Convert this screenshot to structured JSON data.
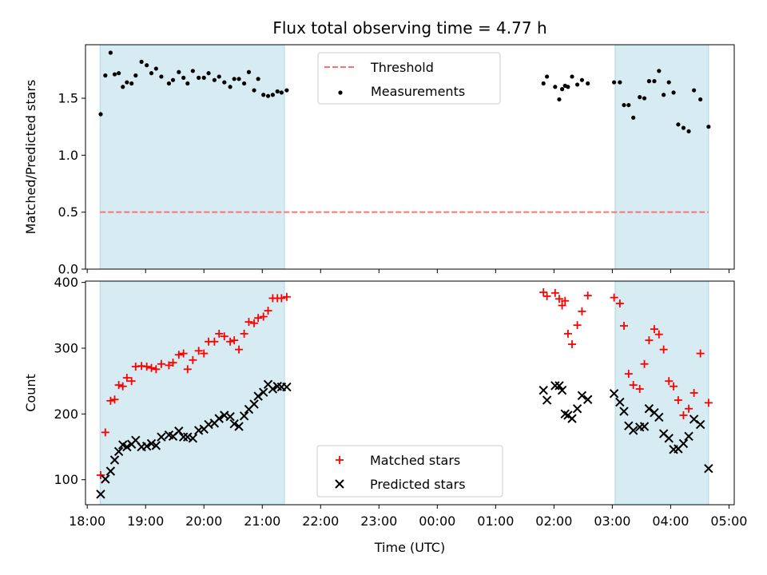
{
  "chart_data": {
    "title": "Flux total observing time = 4.77 h",
    "xlabel": "Time (UTC)",
    "x_unit": "hours since 18:00 UTC",
    "xlim": [
      17.97,
      29.09
    ],
    "xticks": [
      {
        "v": 18,
        "label": "18:00"
      },
      {
        "v": 19,
        "label": "19:00"
      },
      {
        "v": 20,
        "label": "20:00"
      },
      {
        "v": 21,
        "label": "21:00"
      },
      {
        "v": 22,
        "label": "22:00"
      },
      {
        "v": 23,
        "label": "23:00"
      },
      {
        "v": 24,
        "label": "00:00"
      },
      {
        "v": 25,
        "label": "01:00"
      },
      {
        "v": 26,
        "label": "02:00"
      },
      {
        "v": 27,
        "label": "03:00"
      },
      {
        "v": 28,
        "label": "04:00"
      },
      {
        "v": 29,
        "label": "05:00"
      }
    ],
    "shaded_spans": [
      [
        18.22,
        21.38
      ],
      [
        27.05,
        28.65
      ]
    ],
    "shade_color": "#add8e6",
    "panels": [
      {
        "type": "scatter",
        "ylabel": "Matched/Predicted stars",
        "ylim": [
          0,
          1.97
        ],
        "yticks": [
          {
            "v": 0,
            "label": "0.0"
          },
          {
            "v": 0.5,
            "label": "0.5"
          },
          {
            "v": 1.0,
            "label": "1.0"
          },
          {
            "v": 1.5,
            "label": "1.5"
          }
        ],
        "legend": {
          "position": "upper center",
          "entries": [
            {
              "label": "Threshold",
              "kind": "dashed-line",
              "color": "#ff7070"
            },
            {
              "label": "Measurements",
              "kind": "dot",
              "color": "#000000"
            }
          ]
        },
        "threshold": {
          "name": "Threshold",
          "y": 0.5,
          "x_range": [
            18.22,
            28.65
          ],
          "color": "#ff7070",
          "style": "dashed"
        },
        "series": [
          {
            "name": "Measurements",
            "marker": "dot",
            "color": "#000000",
            "x": [
              18.23,
              18.31,
              18.4,
              18.47,
              18.54,
              18.61,
              18.68,
              18.76,
              18.83,
              18.93,
              19.02,
              19.1,
              19.18,
              19.27,
              19.4,
              19.47,
              19.57,
              19.65,
              19.72,
              19.81,
              19.91,
              20.0,
              20.08,
              20.18,
              20.26,
              20.35,
              20.45,
              20.52,
              20.6,
              20.69,
              20.77,
              20.86,
              20.93,
              21.02,
              21.1,
              21.18,
              21.26,
              21.33,
              21.42,
              25.82,
              25.88,
              26.02,
              26.09,
              26.14,
              26.19,
              26.24,
              26.31,
              26.4,
              26.48,
              26.58,
              27.03,
              27.13,
              27.2,
              27.28,
              27.36,
              27.47,
              27.55,
              27.63,
              27.72,
              27.8,
              27.88,
              27.97,
              28.05,
              28.13,
              28.22,
              28.31,
              28.4,
              28.51,
              28.65
            ],
            "y": [
              1.36,
              1.7,
              1.9,
              1.71,
              1.72,
              1.6,
              1.64,
              1.63,
              1.7,
              1.82,
              1.79,
              1.72,
              1.76,
              1.69,
              1.63,
              1.66,
              1.73,
              1.68,
              1.63,
              1.74,
              1.68,
              1.68,
              1.72,
              1.66,
              1.69,
              1.64,
              1.6,
              1.67,
              1.67,
              1.63,
              1.73,
              1.57,
              1.67,
              1.53,
              1.52,
              1.53,
              1.56,
              1.55,
              1.57,
              1.63,
              1.69,
              1.6,
              1.49,
              1.58,
              1.61,
              1.6,
              1.69,
              1.62,
              1.66,
              1.63,
              1.64,
              1.64,
              1.44,
              1.44,
              1.33,
              1.51,
              1.5,
              1.65,
              1.65,
              1.74,
              1.53,
              1.64,
              1.55,
              1.27,
              1.24,
              1.21,
              1.57,
              1.49,
              1.25
            ]
          }
        ]
      },
      {
        "type": "scatter",
        "ylabel": "Count",
        "ylim": [
          62,
          402
        ],
        "yticks": [
          {
            "v": 100,
            "label": "100"
          },
          {
            "v": 200,
            "label": "200"
          },
          {
            "v": 300,
            "label": "300"
          },
          {
            "v": 400,
            "label": "400"
          }
        ],
        "legend": {
          "position": "lower center",
          "entries": [
            {
              "label": "Matched stars",
              "kind": "plus",
              "color": "#ff0000"
            },
            {
              "label": "Predicted stars",
              "kind": "x",
              "color": "#000000"
            }
          ]
        },
        "series": [
          {
            "name": "Matched stars",
            "marker": "plus",
            "color": "#ff0000",
            "x": [
              18.23,
              18.31,
              18.4,
              18.47,
              18.54,
              18.61,
              18.68,
              18.76,
              18.83,
              18.93,
              19.02,
              19.1,
              19.18,
              19.27,
              19.4,
              19.47,
              19.57,
              19.65,
              19.72,
              19.81,
              19.91,
              20.0,
              20.08,
              20.18,
              20.26,
              20.35,
              20.45,
              20.52,
              20.6,
              20.69,
              20.77,
              20.86,
              20.93,
              21.02,
              21.1,
              21.18,
              21.26,
              21.33,
              21.42,
              25.82,
              25.88,
              26.02,
              26.09,
              26.14,
              26.19,
              26.24,
              26.31,
              26.4,
              26.48,
              26.58,
              27.03,
              27.13,
              27.2,
              27.28,
              27.36,
              27.47,
              27.55,
              27.63,
              27.72,
              27.8,
              27.88,
              27.97,
              28.05,
              28.13,
              28.22,
              28.31,
              28.4,
              28.51,
              28.65
            ],
            "y": [
              107,
              172,
              220,
              222,
              244,
              242,
              255,
              250,
              272,
              273,
              272,
              270,
              268,
              276,
              274,
              278,
              290,
              292,
              268,
              282,
              296,
              292,
              310,
              310,
              322,
              318,
              310,
              312,
              298,
              322,
              340,
              338,
              346,
              348,
              357,
              376,
              376,
              376,
              378,
              385,
              379,
              384,
              375,
              365,
              372,
              322,
              306,
              335,
              356,
              380,
              377,
              368,
              334,
              261,
              244,
              238,
              276,
              312,
              329,
              321,
              298,
              250,
              242,
              221,
              198,
              208,
              232,
              292,
              217
            ]
          },
          {
            "name": "Predicted stars",
            "marker": "x",
            "color": "#000000",
            "x": [
              18.23,
              18.31,
              18.4,
              18.47,
              18.54,
              18.61,
              18.68,
              18.76,
              18.83,
              18.93,
              19.02,
              19.1,
              19.18,
              19.27,
              19.4,
              19.47,
              19.57,
              19.65,
              19.72,
              19.81,
              19.91,
              20.0,
              20.08,
              20.18,
              20.26,
              20.35,
              20.45,
              20.52,
              20.6,
              20.69,
              20.77,
              20.86,
              20.93,
              21.02,
              21.1,
              21.18,
              21.26,
              21.33,
              21.42,
              25.82,
              25.88,
              26.02,
              26.09,
              26.14,
              26.19,
              26.24,
              26.31,
              26.4,
              26.48,
              26.58,
              27.03,
              27.13,
              27.2,
              27.28,
              27.36,
              27.47,
              27.55,
              27.63,
              27.72,
              27.8,
              27.88,
              27.97,
              28.05,
              28.13,
              28.22,
              28.31,
              28.4,
              28.51,
              28.65
            ],
            "y": [
              78,
              101,
              113,
              130,
              143,
              153,
              150,
              154,
              160,
              150,
              151,
              155,
              152,
              165,
              168,
              166,
              174,
              165,
              165,
              163,
              175,
              177,
              184,
              186,
              193,
              198,
              196,
              185,
              181,
              197,
              207,
              215,
              227,
              233,
              245,
              238,
              242,
              241,
              241,
              236,
              221,
              243,
              243,
              236,
              200,
              198,
              193,
              208,
              228,
              222,
              231,
              218,
              204,
              182,
              175,
              180,
              181,
              208,
              202,
              195,
              170,
              163,
              146,
              147,
              155,
              166,
              192,
              184,
              117
            ]
          }
        ]
      }
    ]
  }
}
